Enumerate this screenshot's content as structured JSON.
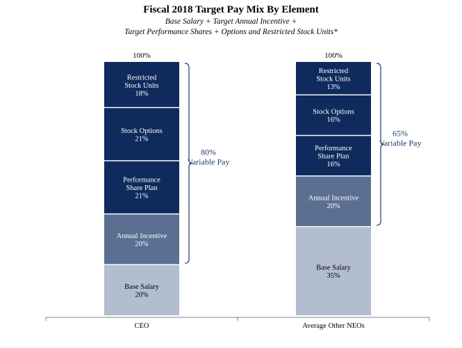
{
  "colors": {
    "dark": "#0f2a5c",
    "mid": "#5a6f91",
    "light": "#b2bdd0",
    "bracket": "#1f3a6e",
    "axis": "#808080"
  },
  "chart_data": {
    "type": "bar",
    "stacked": true,
    "title": "Fiscal 2018 Target Pay Mix By Element",
    "subtitle_line1": "Base Salary + Target Annual Incentive +",
    "subtitle_line2": "Target Performance Shares + Options and Restricted Stock Units*",
    "categories": [
      "CEO",
      "Average Other NEOs"
    ],
    "totals": [
      "100%",
      "100%"
    ],
    "series": [
      {
        "name": "Base Salary",
        "values": [
          20,
          35
        ],
        "color": "light",
        "labels": [
          [
            "Base Salary",
            "20%"
          ],
          [
            "Base Salary",
            "35%"
          ]
        ]
      },
      {
        "name": "Annual Incentive",
        "values": [
          20,
          20
        ],
        "color": "mid",
        "labels": [
          [
            "Annual Incentive",
            "20%"
          ],
          [
            "Annual Incentive",
            "20%"
          ]
        ]
      },
      {
        "name": "Performance Share Plan",
        "values": [
          21,
          16
        ],
        "color": "dark",
        "labels": [
          [
            "Performance",
            "Share Plan",
            "21%"
          ],
          [
            "Performance",
            "Share Plan",
            "16%"
          ]
        ]
      },
      {
        "name": "Stock Options",
        "values": [
          21,
          16
        ],
        "color": "dark",
        "labels": [
          [
            "Stock Options",
            "21%"
          ],
          [
            "Stock Options",
            "16%"
          ]
        ]
      },
      {
        "name": "Restricted Stock Units",
        "values": [
          18,
          13
        ],
        "color": "dark",
        "labels": [
          [
            "Restricted",
            "Stock Units",
            "18%"
          ],
          [
            "Restricted",
            "Stock Units",
            "13%"
          ]
        ]
      }
    ],
    "variable_pay": [
      {
        "line1": "80%",
        "line2": "Variable Pay",
        "from_series": 1
      },
      {
        "line1": "65%",
        "line2": "Variable Pay",
        "from_series": 1
      }
    ],
    "ylim": [
      0,
      100
    ]
  }
}
